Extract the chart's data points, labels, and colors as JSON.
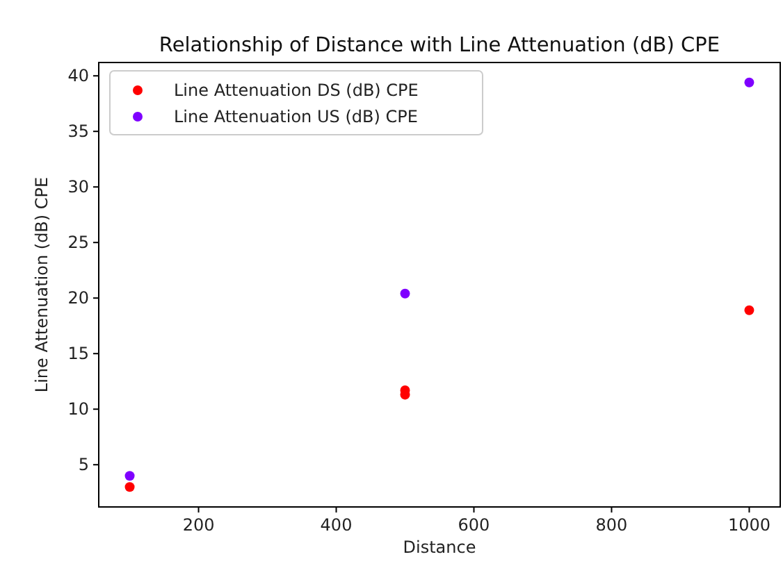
{
  "chart_data": {
    "type": "scatter",
    "title": "Relationship of Distance with Line Attenuation (dB) CPE",
    "xlabel": "Distance",
    "ylabel": "Line Attenuation (dB) CPE",
    "xlim": [
      55,
      1045
    ],
    "ylim": [
      1.2,
      41.2
    ],
    "xticks": [
      200,
      400,
      600,
      800,
      1000
    ],
    "yticks": [
      5,
      10,
      15,
      20,
      25,
      30,
      35,
      40
    ],
    "grid": false,
    "legend": "top left",
    "marker": "circle",
    "series": [
      {
        "name": "Line Attenuation DS (dB) CPE",
        "color": "#ff0000",
        "x": [
          100,
          500,
          500,
          1000
        ],
        "values": [
          3.0,
          11.3,
          11.7,
          18.9
        ]
      },
      {
        "name": "Line Attenuation US (dB) CPE",
        "color": "#7f00ff",
        "x": [
          100,
          500,
          1000
        ],
        "values": [
          4.0,
          20.4,
          39.4
        ]
      }
    ]
  }
}
